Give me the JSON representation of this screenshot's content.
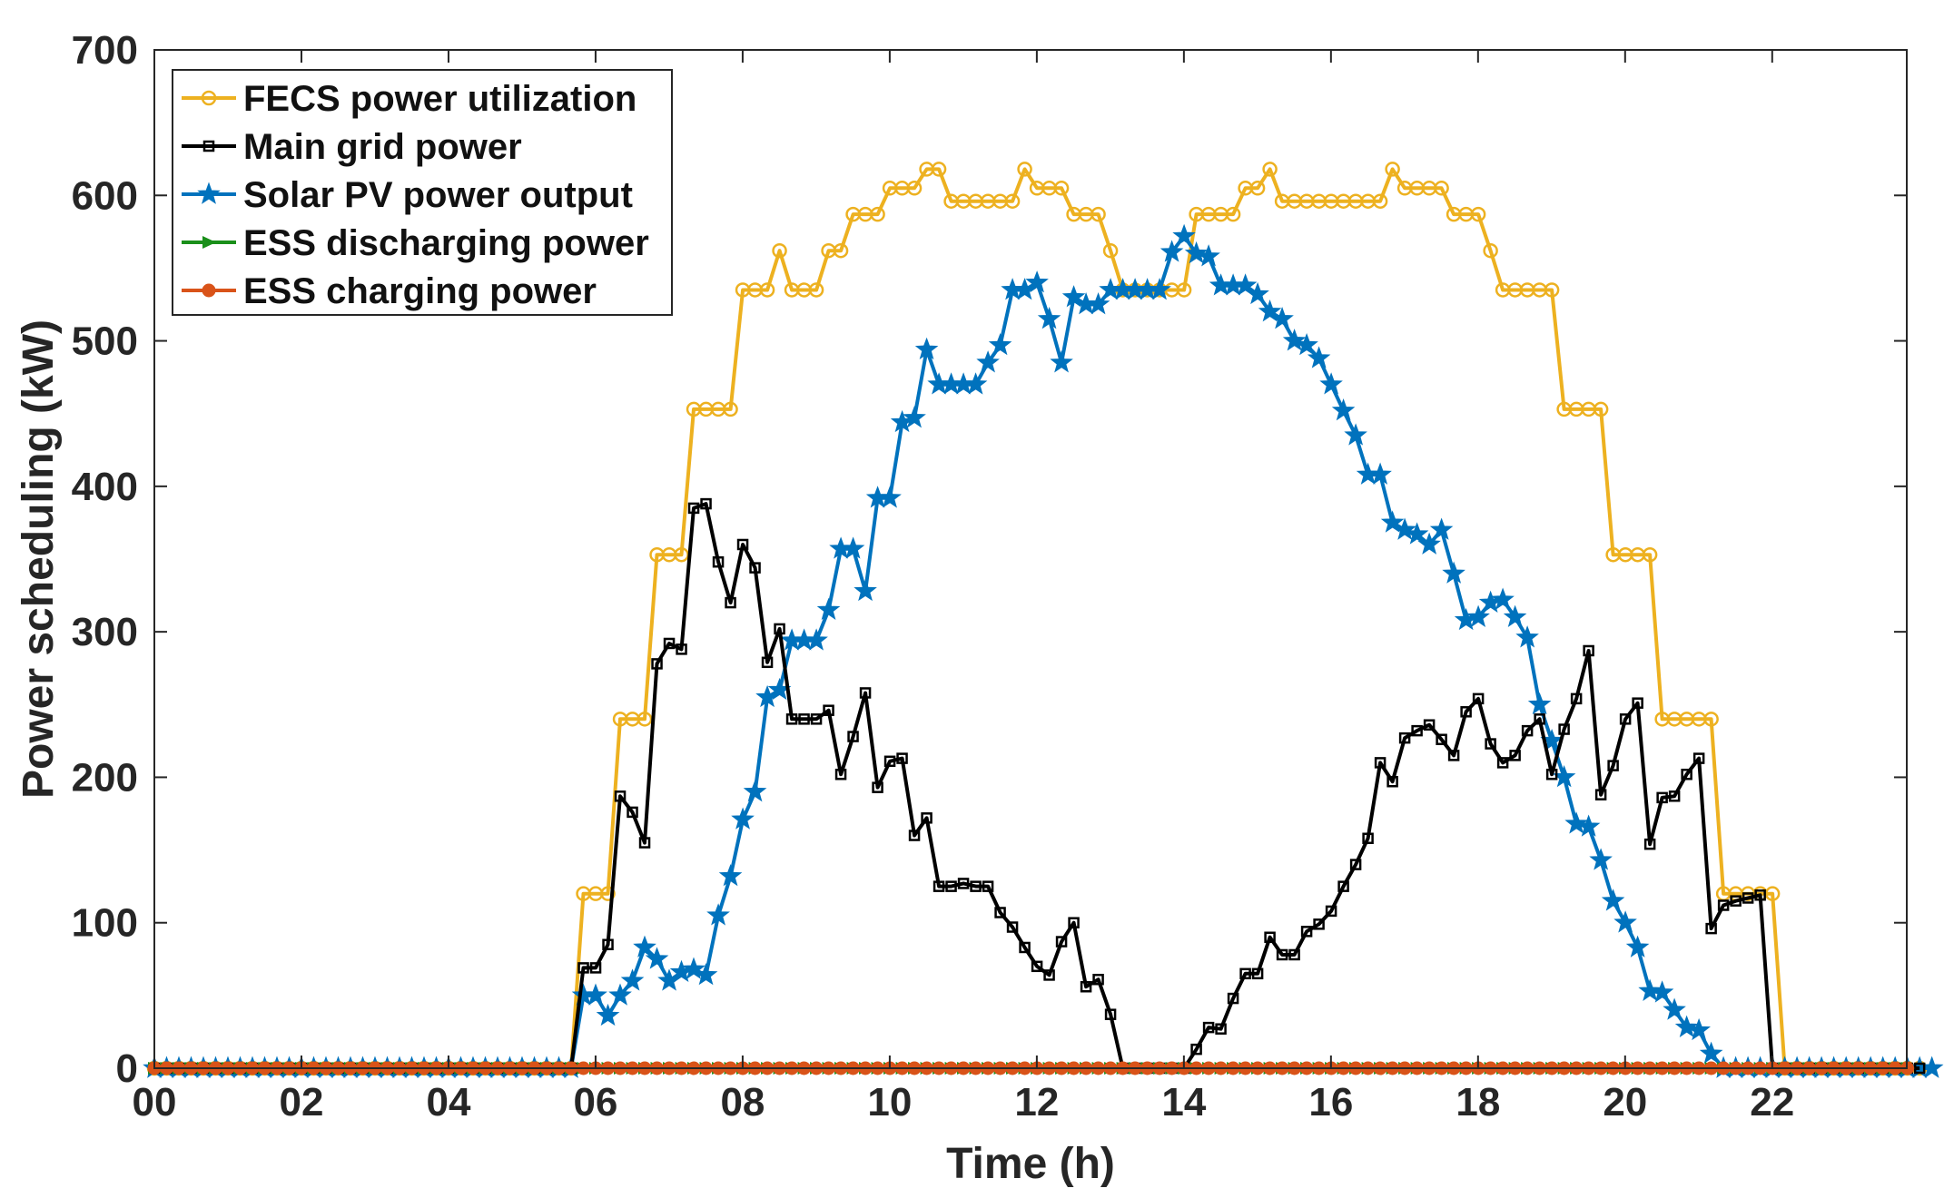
{
  "chart_data": {
    "type": "line",
    "title": "",
    "xlabel": "Time (h)",
    "ylabel": "Power scheduling (kW)",
    "xlim": [
      0,
      23.83
    ],
    "ylim": [
      0,
      700
    ],
    "x_step_hours": 0.1667,
    "x_ticks": [
      {
        "value": 0,
        "label": "00"
      },
      {
        "value": 2,
        "label": "02"
      },
      {
        "value": 4,
        "label": "04"
      },
      {
        "value": 6,
        "label": "06"
      },
      {
        "value": 8,
        "label": "08"
      },
      {
        "value": 10,
        "label": "10"
      },
      {
        "value": 12,
        "label": "12"
      },
      {
        "value": 14,
        "label": "14"
      },
      {
        "value": 16,
        "label": "16"
      },
      {
        "value": 18,
        "label": "18"
      },
      {
        "value": 20,
        "label": "20"
      },
      {
        "value": 22,
        "label": "22"
      }
    ],
    "y_ticks": [
      {
        "value": 0,
        "label": "0"
      },
      {
        "value": 100,
        "label": "100"
      },
      {
        "value": 200,
        "label": "200"
      },
      {
        "value": 300,
        "label": "300"
      },
      {
        "value": 400,
        "label": "400"
      },
      {
        "value": 500,
        "label": "500"
      },
      {
        "value": 600,
        "label": "600"
      },
      {
        "value": 700,
        "label": "700"
      }
    ],
    "grid": false,
    "legend_position": "top-left",
    "series": [
      {
        "name": "FECS power utilization",
        "color": "#EDB120",
        "marker": "circle",
        "values": [
          0,
          0,
          0,
          0,
          0,
          0,
          0,
          0,
          0,
          0,
          0,
          0,
          0,
          0,
          0,
          0,
          0,
          0,
          0,
          0,
          0,
          0,
          0,
          0,
          0,
          0,
          0,
          0,
          0,
          0,
          0,
          0,
          0,
          0,
          0,
          120,
          120,
          120,
          240,
          240,
          240,
          353,
          353,
          353,
          453,
          453,
          453,
          453,
          535,
          535,
          535,
          562,
          535,
          535,
          535,
          562,
          562,
          587,
          587,
          587,
          605,
          605,
          605,
          618,
          618,
          596,
          596,
          596,
          596,
          596,
          596,
          618,
          605,
          605,
          605,
          587,
          587,
          587,
          562,
          535,
          535,
          535,
          535,
          535,
          535,
          587,
          587,
          587,
          587,
          605,
          605,
          618,
          596,
          596,
          596,
          596,
          596,
          596,
          596,
          596,
          596,
          618,
          605,
          605,
          605,
          605,
          587,
          587,
          587,
          562,
          535,
          535,
          535,
          535,
          535,
          453,
          453,
          453,
          453,
          353,
          353,
          353,
          353,
          240,
          240,
          240,
          240,
          240,
          120,
          120,
          120,
          120,
          120,
          0,
          0,
          0,
          0,
          0,
          0,
          0,
          0,
          0,
          0,
          0,
          0
        ]
      },
      {
        "name": "Main grid power",
        "color": "#000000",
        "marker": "square",
        "values": [
          0,
          0,
          0,
          0,
          0,
          0,
          0,
          0,
          0,
          0,
          0,
          0,
          0,
          0,
          0,
          0,
          0,
          0,
          0,
          0,
          0,
          0,
          0,
          0,
          0,
          0,
          0,
          0,
          0,
          0,
          0,
          0,
          0,
          0,
          0,
          69,
          69,
          85,
          187,
          176,
          155,
          278,
          292,
          288,
          385,
          388,
          348,
          320,
          360,
          344,
          279,
          302,
          240,
          240,
          240,
          246,
          202,
          228,
          258,
          193,
          211,
          213,
          160,
          172,
          125,
          125,
          127,
          125,
          125,
          107,
          97,
          83,
          70,
          64,
          87,
          100,
          56,
          61,
          37,
          0,
          0,
          0,
          0,
          0,
          0,
          13,
          28,
          27,
          48,
          65,
          65,
          90,
          78,
          78,
          94,
          99,
          108,
          125,
          140,
          158,
          210,
          197,
          227,
          232,
          236,
          226,
          215,
          245,
          254,
          223,
          210,
          215,
          232,
          240,
          202,
          233,
          254,
          287,
          188,
          208,
          240,
          251,
          154,
          186,
          187,
          202,
          213,
          96,
          112,
          115,
          117,
          119,
          0,
          0,
          0,
          0,
          0,
          0,
          0,
          0,
          0,
          0,
          0,
          0,
          0
        ]
      },
      {
        "name": "Solar PV power output",
        "color": "#0072BD",
        "marker": "star",
        "values": [
          0,
          0,
          0,
          0,
          0,
          0,
          0,
          0,
          0,
          0,
          0,
          0,
          0,
          0,
          0,
          0,
          0,
          0,
          0,
          0,
          0,
          0,
          0,
          0,
          0,
          0,
          0,
          0,
          0,
          0,
          0,
          0,
          0,
          0,
          0,
          50,
          50,
          36,
          50,
          60,
          83,
          75,
          60,
          66,
          68,
          64,
          105,
          132,
          171,
          190,
          255,
          260,
          294,
          294,
          294,
          315,
          357,
          357,
          328,
          392,
          392,
          444,
          447,
          494,
          470,
          470,
          470,
          470,
          485,
          497,
          535,
          535,
          540,
          515,
          485,
          530,
          525,
          525,
          535,
          535,
          535,
          535,
          535,
          561,
          572,
          560,
          558,
          538,
          538,
          538,
          532,
          520,
          515,
          500,
          497,
          488,
          470,
          452,
          435,
          408,
          408,
          375,
          370,
          367,
          360,
          370,
          340,
          308,
          310,
          320,
          322,
          310,
          296,
          250,
          225,
          200,
          168,
          166,
          143,
          115,
          100,
          83,
          53,
          52,
          40,
          28,
          26,
          10,
          0,
          0,
          0,
          0,
          0,
          0,
          0,
          0,
          0,
          0,
          0,
          0,
          0,
          0,
          0,
          0,
          0,
          0
        ]
      },
      {
        "name": "ESS discharging power",
        "color": "#1A8F1A",
        "marker": "triangle-right",
        "values": "zero-at-all-144-timesteps"
      },
      {
        "name": "ESS charging power",
        "color": "#D95319",
        "marker": "circle-filled",
        "values": "zero-at-all-144-timesteps"
      }
    ]
  }
}
